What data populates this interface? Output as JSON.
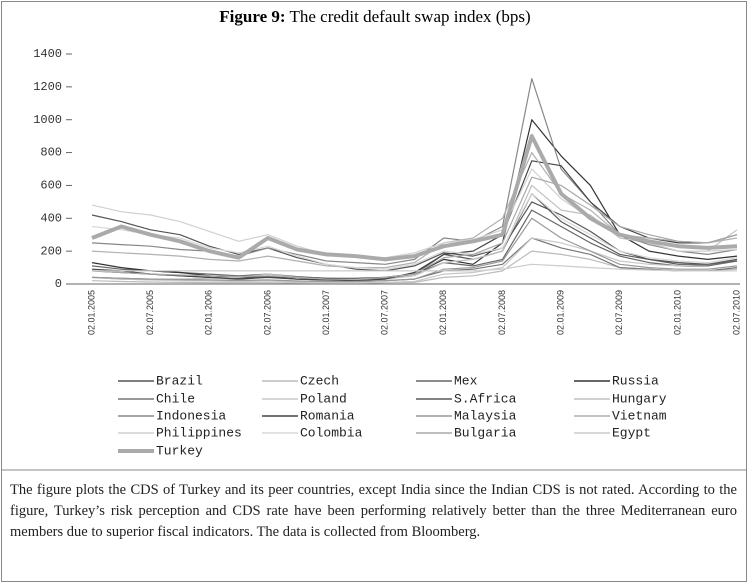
{
  "chart_data": {
    "type": "line",
    "title_label": "Figure 9:",
    "title": "The credit default swap index (bps)",
    "categories": [
      "02.01.2005",
      null,
      "02.07.2005",
      null,
      "02.01.2006",
      null,
      "02.07.2006",
      null,
      "02.01.2007",
      null,
      "02.07.2007",
      null,
      "02.01.2008",
      null,
      "02.07.2008",
      null,
      "02.01.2009",
      null,
      "02.07.2009",
      null,
      "02.01.2010",
      null,
      "02.07.2010"
    ],
    "ylim": [
      0,
      1400
    ],
    "yticks": [
      0,
      200,
      400,
      600,
      800,
      1000,
      1200,
      1400
    ],
    "series": [
      {
        "name": "Brazil",
        "color": "#555555",
        "values": [
          420,
          380,
          330,
          300,
          230,
          180,
          220,
          160,
          120,
          90,
          80,
          110,
          190,
          170,
          220,
          500,
          420,
          320,
          200,
          150,
          130,
          120,
          150
        ]
      },
      {
        "name": "Czech",
        "color": "#bbbbbb",
        "values": [
          20,
          15,
          12,
          10,
          8,
          8,
          8,
          6,
          5,
          5,
          8,
          10,
          40,
          50,
          80,
          200,
          180,
          150,
          100,
          90,
          80,
          80,
          90
        ]
      },
      {
        "name": "Mex",
        "color": "#666666",
        "values": [
          110,
          90,
          80,
          70,
          60,
          50,
          60,
          45,
          35,
          30,
          35,
          60,
          130,
          110,
          150,
          450,
          350,
          250,
          170,
          130,
          110,
          110,
          140
        ]
      },
      {
        "name": "Russia",
        "color": "#333333",
        "values": [
          130,
          100,
          80,
          70,
          50,
          40,
          45,
          40,
          35,
          35,
          40,
          60,
          150,
          120,
          250,
          1000,
          780,
          600,
          300,
          200,
          170,
          150,
          170
        ]
      },
      {
        "name": "Chile",
        "color": "#777777",
        "values": [
          40,
          35,
          30,
          25,
          20,
          20,
          20,
          15,
          15,
          15,
          20,
          30,
          80,
          90,
          120,
          280,
          220,
          180,
          100,
          90,
          80,
          80,
          100
        ]
      },
      {
        "name": "Poland",
        "color": "#c8c8c8",
        "values": [
          40,
          30,
          25,
          20,
          18,
          15,
          18,
          12,
          10,
          8,
          10,
          15,
          60,
          70,
          100,
          280,
          250,
          200,
          140,
          120,
          110,
          120,
          140
        ]
      },
      {
        "name": "S.Africa",
        "color": "#5a5a5a",
        "values": [
          80,
          70,
          60,
          50,
          40,
          35,
          45,
          30,
          25,
          25,
          40,
          60,
          180,
          150,
          200,
          550,
          380,
          280,
          180,
          150,
          120,
          120,
          140
        ]
      },
      {
        "name": "Hungary",
        "color": "#c0c0c0",
        "values": [
          40,
          30,
          25,
          30,
          35,
          40,
          60,
          40,
          30,
          25,
          30,
          50,
          130,
          150,
          200,
          600,
          450,
          420,
          280,
          250,
          200,
          200,
          330
        ]
      },
      {
        "name": "Indonesia",
        "color": "#888888",
        "values": [
          250,
          240,
          230,
          210,
          200,
          170,
          220,
          180,
          140,
          130,
          120,
          150,
          280,
          260,
          350,
          1250,
          700,
          500,
          300,
          240,
          200,
          180,
          210
        ]
      },
      {
        "name": "Romania",
        "color": "#444444",
        "values": [
          90,
          80,
          60,
          50,
          40,
          30,
          40,
          30,
          25,
          20,
          30,
          70,
          180,
          200,
          300,
          750,
          720,
          500,
          350,
          280,
          250,
          250,
          300
        ]
      },
      {
        "name": "Malaysia",
        "color": "#999999",
        "values": [
          40,
          35,
          30,
          28,
          25,
          22,
          25,
          18,
          15,
          15,
          20,
          30,
          90,
          100,
          140,
          400,
          280,
          200,
          120,
          100,
          90,
          90,
          110
        ]
      },
      {
        "name": "Vietnam",
        "color": "#b0b0b0",
        "values": [
          200,
          190,
          180,
          170,
          150,
          140,
          170,
          140,
          110,
          100,
          100,
          130,
          250,
          280,
          400,
          800,
          550,
          450,
          300,
          280,
          260,
          250,
          280
        ]
      },
      {
        "name": "Philippines",
        "color": "#d0d0d0",
        "values": [
          480,
          440,
          420,
          380,
          320,
          260,
          300,
          230,
          180,
          170,
          160,
          190,
          250,
          270,
          330,
          700,
          520,
          400,
          300,
          250,
          200,
          200,
          210
        ]
      },
      {
        "name": "Colombia",
        "color": "#d8d8d8",
        "values": [
          350,
          330,
          300,
          280,
          220,
          190,
          230,
          170,
          120,
          100,
          90,
          120,
          200,
          180,
          220,
          550,
          400,
          300,
          200,
          160,
          140,
          130,
          160
        ]
      },
      {
        "name": "Bulgaria",
        "color": "#a8a8a8",
        "values": [
          80,
          70,
          60,
          55,
          50,
          45,
          50,
          40,
          30,
          30,
          40,
          60,
          160,
          180,
          250,
          650,
          600,
          480,
          350,
          300,
          260,
          250,
          300
        ]
      },
      {
        "name": "Egypt",
        "color": "#cccccc",
        "values": [
          80,
          80,
          80,
          80,
          80,
          80,
          80,
          80,
          80,
          80,
          80,
          80,
          80,
          80,
          90,
          120,
          110,
          100,
          90,
          85,
          80,
          80,
          80
        ]
      },
      {
        "name": "Turkey",
        "color": "#aaaaaa",
        "values": [
          280,
          350,
          300,
          260,
          200,
          160,
          280,
          210,
          180,
          170,
          150,
          170,
          230,
          260,
          300,
          900,
          550,
          400,
          300,
          260,
          230,
          220,
          230
        ]
      }
    ],
    "highlight_series": "Turkey",
    "caption": "The figure plots the CDS of Turkey and its peer countries, except India since the Indian CDS is not rated. According to the figure, Turkey’s risk perception and CDS rate have been performing relatively better than the three Mediterranean euro members due to superior fiscal indicators. The data is collected from Bloomberg."
  }
}
